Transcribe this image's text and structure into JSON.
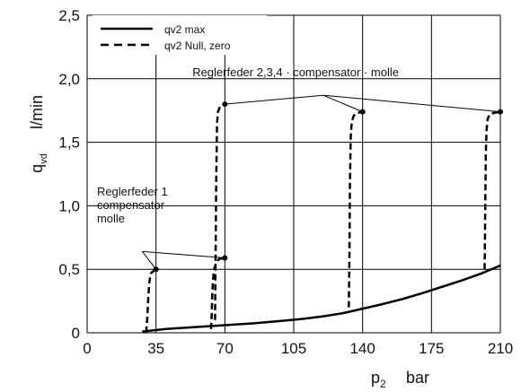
{
  "chart_data": {
    "type": "line",
    "xlabel": {
      "symbol": "p",
      "sub": "2",
      "unit": "bar"
    },
    "ylabel": {
      "symbol": "q",
      "sub": "vd",
      "unit": "l/min"
    },
    "xlim": [
      0,
      210
    ],
    "ylim": [
      0,
      2.5
    ],
    "xticks": [
      0,
      35,
      70,
      105,
      140,
      175,
      210
    ],
    "xtick_labels": [
      "0",
      "35",
      "70",
      "105",
      "140",
      "175",
      "210"
    ],
    "yticks": [
      0,
      0.5,
      1.0,
      1.5,
      2.0,
      2.5
    ],
    "ytick_labels": [
      "0",
      "0,5",
      "1,0",
      "1,5",
      "2,0",
      "2,5"
    ],
    "grid": true,
    "legend_position": "top-left",
    "series": [
      {
        "name": "qv2 max",
        "style": "solid",
        "x": [
          28,
          40,
          55,
          70,
          85,
          100,
          110,
          120,
          130,
          140,
          150,
          160,
          170,
          180,
          190,
          200,
          210
        ],
        "y": [
          0.01,
          0.03,
          0.045,
          0.06,
          0.075,
          0.095,
          0.11,
          0.13,
          0.155,
          0.19,
          0.225,
          0.265,
          0.31,
          0.36,
          0.41,
          0.465,
          0.53
        ]
      },
      {
        "name": "qv2 Null, zero",
        "style": "dashed",
        "segments": [
          {
            "x": [
              30,
              30.5,
              31,
              31.5,
              32,
              32.5,
              34,
              35
            ],
            "y": [
              0.0,
              0.1,
              0.25,
              0.38,
              0.44,
              0.47,
              0.49,
              0.5
            ]
          },
          {
            "x": [
              63,
              63.3,
              63.6,
              64,
              64.5,
              65.5,
              67,
              70
            ],
            "y": [
              0.03,
              0.15,
              0.3,
              0.42,
              0.5,
              0.55,
              0.58,
              0.59
            ]
          },
          {
            "x": [
              65,
              65.3,
              65.6,
              66,
              66.5,
              67.5,
              70
            ],
            "y": [
              0.1,
              0.6,
              1.2,
              1.65,
              1.74,
              1.78,
              1.8
            ]
          },
          {
            "x": [
              133,
              133.3,
              133.6,
              134,
              134.5,
              135.5,
              137,
              140
            ],
            "y": [
              0.2,
              0.6,
              1.2,
              1.55,
              1.66,
              1.71,
              1.73,
              1.74
            ]
          },
          {
            "x": [
              202,
              202.3,
              202.6,
              203,
              203.5,
              204.5,
              206.5,
              210
            ],
            "y": [
              0.5,
              0.9,
              1.4,
              1.6,
              1.68,
              1.72,
              1.73,
              1.74
            ]
          }
        ]
      }
    ],
    "markers": [
      {
        "x": 35,
        "y": 0.5
      },
      {
        "x": 70,
        "y": 0.59
      },
      {
        "x": 70,
        "y": 1.8
      },
      {
        "x": 140,
        "y": 1.74
      },
      {
        "x": 210,
        "y": 1.74
      }
    ],
    "annotations": [
      {
        "lines": [
          "Reglerfeder 1",
          "compensator",
          "molle"
        ],
        "anchor": {
          "x": 28,
          "y": 0.64
        },
        "targets": [
          {
            "x": 35,
            "y": 0.5
          },
          {
            "x": 70,
            "y": 0.59
          }
        ]
      },
      {
        "lines": [
          "Reglerfeder 2,3,4 · compensator · molle"
        ],
        "anchor": {
          "x": 120,
          "y": 1.87
        },
        "targets": [
          {
            "x": 70,
            "y": 1.8
          },
          {
            "x": 140,
            "y": 1.74
          },
          {
            "x": 210,
            "y": 1.74
          }
        ]
      }
    ]
  }
}
